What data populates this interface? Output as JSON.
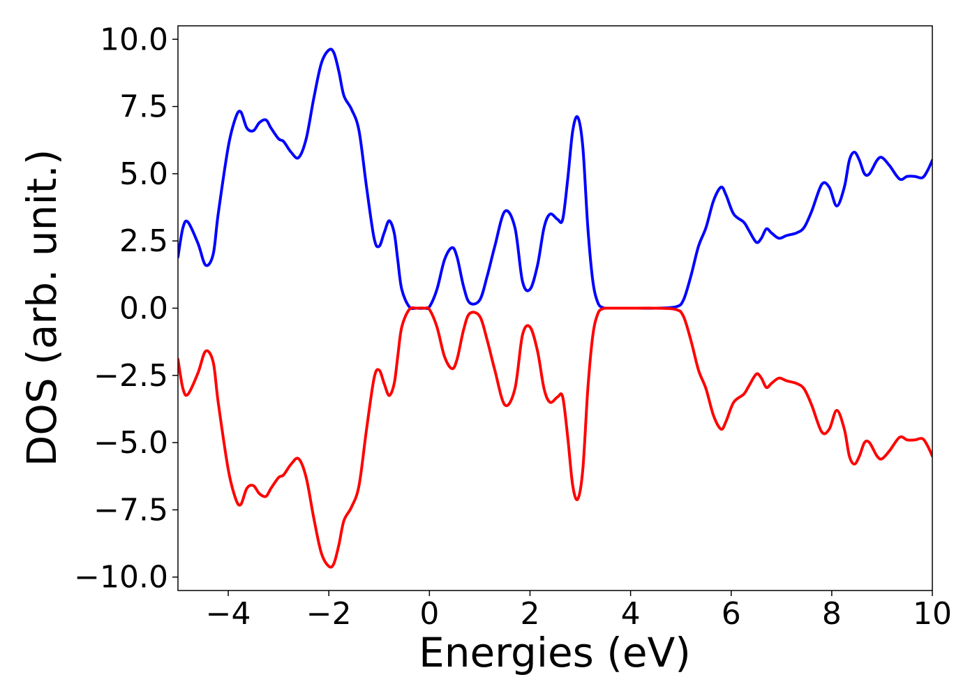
{
  "chart_data": {
    "type": "line",
    "xlabel": "Energies (eV)",
    "ylabel": "DOS (arb. unit.)",
    "xlim": [
      -5,
      10
    ],
    "ylim": [
      -10.5,
      10.5
    ],
    "xticks": [
      -4,
      -2,
      0,
      2,
      4,
      6,
      8,
      10
    ],
    "xtick_labels": [
      "−4",
      "−2",
      "0",
      "2",
      "4",
      "6",
      "8",
      "10"
    ],
    "yticks": [
      10,
      7.5,
      5,
      2.5,
      0,
      -2.5,
      -5,
      -7.5,
      -10
    ],
    "ytick_labels": [
      "10.0",
      "7.5",
      "5.0",
      "2.5",
      "0.0",
      "−2.5",
      "−5.0",
      "−7.5",
      "−10.0"
    ],
    "grid": false,
    "legend": "none",
    "series": [
      {
        "color": "#0000ff",
        "x": [
          -5.0,
          -4.9,
          -4.8,
          -4.6,
          -4.45,
          -4.3,
          -4.2,
          -4.0,
          -3.85,
          -3.75,
          -3.63,
          -3.5,
          -3.38,
          -3.25,
          -3.15,
          -3.0,
          -2.9,
          -2.75,
          -2.6,
          -2.45,
          -2.3,
          -2.15,
          -2.0,
          -1.9,
          -1.8,
          -1.7,
          -1.55,
          -1.4,
          -1.25,
          -1.1,
          -1.0,
          -0.9,
          -0.8,
          -0.7,
          -0.63,
          -0.55,
          -0.4,
          -0.25,
          -0.1,
          0.0,
          0.15,
          0.3,
          0.45,
          0.55,
          0.68,
          0.8,
          1.0,
          1.15,
          1.3,
          1.5,
          1.7,
          1.85,
          2.0,
          2.15,
          2.28,
          2.4,
          2.55,
          2.65,
          2.75,
          2.85,
          2.95,
          3.05,
          3.15,
          3.25,
          3.35,
          3.45,
          3.55,
          3.7,
          3.85,
          4.0,
          4.5,
          4.9,
          5.05,
          5.2,
          5.35,
          5.5,
          5.65,
          5.8,
          5.9,
          6.05,
          6.25,
          6.35,
          6.5,
          6.6,
          6.7,
          6.8,
          6.95,
          7.1,
          7.3,
          7.45,
          7.6,
          7.8,
          7.95,
          8.1,
          8.25,
          8.35,
          8.45,
          8.55,
          8.65,
          8.75,
          8.9,
          9.0,
          9.15,
          9.35,
          9.5,
          9.65,
          9.8,
          9.9,
          10.0
        ],
        "y": [
          1.9,
          3.0,
          3.2,
          2.4,
          1.6,
          2.0,
          3.5,
          6.0,
          7.1,
          7.3,
          6.7,
          6.6,
          6.9,
          7.0,
          6.7,
          6.3,
          6.2,
          5.8,
          5.6,
          6.3,
          7.8,
          9.1,
          9.6,
          9.5,
          8.8,
          7.9,
          7.4,
          6.6,
          4.5,
          2.6,
          2.3,
          2.8,
          3.25,
          2.8,
          1.8,
          0.7,
          0.05,
          0.0,
          0.0,
          0.05,
          0.7,
          1.8,
          2.25,
          1.9,
          0.8,
          0.2,
          0.3,
          1.2,
          2.3,
          3.6,
          3.0,
          1.0,
          0.7,
          1.6,
          3.0,
          3.5,
          3.3,
          3.3,
          4.8,
          6.6,
          7.1,
          6.0,
          3.0,
          1.0,
          0.2,
          0.02,
          0.0,
          0.0,
          0.0,
          0.0,
          0.0,
          0.05,
          0.3,
          1.2,
          2.3,
          3.0,
          4.0,
          4.5,
          4.2,
          3.5,
          3.2,
          2.9,
          2.45,
          2.6,
          2.95,
          2.8,
          2.6,
          2.7,
          2.8,
          3.0,
          3.6,
          4.6,
          4.5,
          3.8,
          4.5,
          5.5,
          5.8,
          5.5,
          5.0,
          5.0,
          5.5,
          5.6,
          5.3,
          4.8,
          4.9,
          4.9,
          4.85,
          5.1,
          5.5
        ]
      },
      {
        "color": "#ff0000",
        "x": [
          -5.0,
          -4.9,
          -4.8,
          -4.6,
          -4.45,
          -4.3,
          -4.2,
          -4.0,
          -3.85,
          -3.75,
          -3.63,
          -3.5,
          -3.38,
          -3.25,
          -3.15,
          -3.0,
          -2.9,
          -2.75,
          -2.6,
          -2.45,
          -2.3,
          -2.15,
          -2.0,
          -1.9,
          -1.8,
          -1.7,
          -1.55,
          -1.4,
          -1.25,
          -1.1,
          -1.0,
          -0.9,
          -0.8,
          -0.7,
          -0.63,
          -0.55,
          -0.4,
          -0.25,
          -0.1,
          0.0,
          0.15,
          0.3,
          0.45,
          0.55,
          0.68,
          0.8,
          1.0,
          1.15,
          1.3,
          1.5,
          1.7,
          1.85,
          2.0,
          2.15,
          2.28,
          2.4,
          2.55,
          2.65,
          2.75,
          2.85,
          2.95,
          3.05,
          3.15,
          3.25,
          3.35,
          3.45,
          3.55,
          3.7,
          3.85,
          4.0,
          4.5,
          4.9,
          5.05,
          5.2,
          5.35,
          5.5,
          5.65,
          5.8,
          5.9,
          6.05,
          6.25,
          6.35,
          6.5,
          6.6,
          6.7,
          6.8,
          6.95,
          7.1,
          7.3,
          7.45,
          7.6,
          7.8,
          7.95,
          8.1,
          8.25,
          8.35,
          8.45,
          8.55,
          8.65,
          8.75,
          8.9,
          9.0,
          9.15,
          9.35,
          9.5,
          9.65,
          9.8,
          9.9,
          10.0
        ],
        "y": [
          -1.9,
          -3.0,
          -3.2,
          -2.4,
          -1.6,
          -2.0,
          -3.5,
          -6.0,
          -7.1,
          -7.3,
          -6.7,
          -6.6,
          -6.9,
          -7.0,
          -6.7,
          -6.3,
          -6.2,
          -5.8,
          -5.6,
          -6.3,
          -7.8,
          -9.1,
          -9.6,
          -9.5,
          -8.8,
          -7.9,
          -7.4,
          -6.6,
          -4.5,
          -2.6,
          -2.3,
          -2.8,
          -3.25,
          -2.8,
          -1.8,
          -0.7,
          -0.05,
          0.0,
          0.0,
          -0.05,
          -0.7,
          -1.8,
          -2.25,
          -1.9,
          -0.8,
          -0.2,
          -0.3,
          -1.2,
          -2.3,
          -3.6,
          -3.0,
          -1.0,
          -0.7,
          -1.6,
          -3.0,
          -3.5,
          -3.3,
          -3.3,
          -4.8,
          -6.6,
          -7.1,
          -6.0,
          -3.0,
          -1.0,
          -0.2,
          -0.02,
          0.0,
          0.0,
          0.0,
          0.0,
          0.0,
          -0.05,
          -0.3,
          -1.2,
          -2.3,
          -3.0,
          -4.0,
          -4.5,
          -4.2,
          -3.5,
          -3.2,
          -2.9,
          -2.45,
          -2.6,
          -2.95,
          -2.8,
          -2.6,
          -2.7,
          -2.8,
          -3.0,
          -3.6,
          -4.6,
          -4.5,
          -3.8,
          -4.5,
          -5.5,
          -5.8,
          -5.5,
          -5.0,
          -5.0,
          -5.5,
          -5.6,
          -5.3,
          -4.8,
          -4.9,
          -4.9,
          -4.85,
          -5.1,
          -5.5
        ]
      }
    ]
  }
}
